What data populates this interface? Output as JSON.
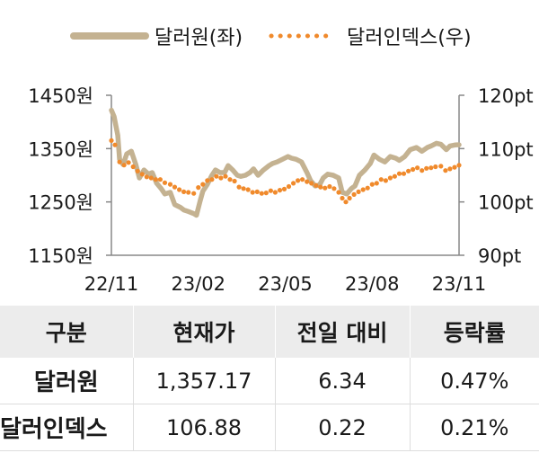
{
  "chart_data": {
    "type": "line",
    "legend": [
      {
        "name": "달러원(좌)",
        "color": "#c4b291",
        "style": "solid"
      },
      {
        "name": "달러인덱스(우)",
        "color": "#f08a2c",
        "style": "dotted"
      }
    ],
    "legend_position": "top-center",
    "x_tick_labels": [
      "22/11",
      "23/02",
      "23/05",
      "23/08",
      "23/11"
    ],
    "x_range": [
      "2022-11-01",
      "2023-11-20"
    ],
    "y_left": {
      "ticks": [
        "1450원",
        "1350원",
        "1250원",
        "1150원"
      ],
      "min": 1150,
      "max": 1450
    },
    "y_right": {
      "ticks": [
        "120pt",
        "110pt",
        "100pt",
        "90pt"
      ],
      "min": 90,
      "max": 120
    },
    "series": [
      {
        "name": "달러원(좌)",
        "axis": "left",
        "points": [
          [
            "2022-11-01",
            1422
          ],
          [
            "2022-11-04",
            1410
          ],
          [
            "2022-11-08",
            1375
          ],
          [
            "2022-11-10",
            1330
          ],
          [
            "2022-11-14",
            1320
          ],
          [
            "2022-11-18",
            1340
          ],
          [
            "2022-11-23",
            1345
          ],
          [
            "2022-11-28",
            1320
          ],
          [
            "2022-12-02",
            1295
          ],
          [
            "2022-12-07",
            1310
          ],
          [
            "2022-12-12",
            1302
          ],
          [
            "2022-12-16",
            1305
          ],
          [
            "2022-12-21",
            1285
          ],
          [
            "2022-12-26",
            1275
          ],
          [
            "2022-12-30",
            1265
          ],
          [
            "2023-01-05",
            1268
          ],
          [
            "2023-01-10",
            1245
          ],
          [
            "2023-01-16",
            1240
          ],
          [
            "2023-01-20",
            1235
          ],
          [
            "2023-01-25",
            1232
          ],
          [
            "2023-01-31",
            1228
          ],
          [
            "2023-02-03",
            1225
          ],
          [
            "2023-02-07",
            1252
          ],
          [
            "2023-02-10",
            1270
          ],
          [
            "2023-02-15",
            1283
          ],
          [
            "2023-02-20",
            1300
          ],
          [
            "2023-02-24",
            1310
          ],
          [
            "2023-03-01",
            1305
          ],
          [
            "2023-03-06",
            1305
          ],
          [
            "2023-03-10",
            1318
          ],
          [
            "2023-03-15",
            1310
          ],
          [
            "2023-03-20",
            1300
          ],
          [
            "2023-03-24",
            1298
          ],
          [
            "2023-03-29",
            1300
          ],
          [
            "2023-04-03",
            1305
          ],
          [
            "2023-04-07",
            1312
          ],
          [
            "2023-04-12",
            1300
          ],
          [
            "2023-04-18",
            1310
          ],
          [
            "2023-04-24",
            1318
          ],
          [
            "2023-04-28",
            1322
          ],
          [
            "2023-05-03",
            1325
          ],
          [
            "2023-05-09",
            1330
          ],
          [
            "2023-05-15",
            1335
          ],
          [
            "2023-05-19",
            1332
          ],
          [
            "2023-05-24",
            1330
          ],
          [
            "2023-05-30",
            1325
          ],
          [
            "2023-06-05",
            1305
          ],
          [
            "2023-06-09",
            1290
          ],
          [
            "2023-06-14",
            1280
          ],
          [
            "2023-06-19",
            1282
          ],
          [
            "2023-06-23",
            1295
          ],
          [
            "2023-06-28",
            1302
          ],
          [
            "2023-07-04",
            1300
          ],
          [
            "2023-07-10",
            1295
          ],
          [
            "2023-07-14",
            1268
          ],
          [
            "2023-07-19",
            1265
          ],
          [
            "2023-07-24",
            1275
          ],
          [
            "2023-07-28",
            1280
          ],
          [
            "2023-08-02",
            1300
          ],
          [
            "2023-08-08",
            1310
          ],
          [
            "2023-08-14",
            1322
          ],
          [
            "2023-08-18",
            1338
          ],
          [
            "2023-08-24",
            1330
          ],
          [
            "2023-08-30",
            1325
          ],
          [
            "2023-09-05",
            1335
          ],
          [
            "2023-09-11",
            1332
          ],
          [
            "2023-09-15",
            1328
          ],
          [
            "2023-09-21",
            1335
          ],
          [
            "2023-09-27",
            1348
          ],
          [
            "2023-10-04",
            1352
          ],
          [
            "2023-10-10",
            1345
          ],
          [
            "2023-10-16",
            1352
          ],
          [
            "2023-10-20",
            1355
          ],
          [
            "2023-10-26",
            1360
          ],
          [
            "2023-10-31",
            1358
          ],
          [
            "2023-11-06",
            1348
          ],
          [
            "2023-11-10",
            1355
          ],
          [
            "2023-11-16",
            1357
          ],
          [
            "2023-11-20",
            1357.17
          ]
        ]
      },
      {
        "name": "달러인덱스(우)",
        "axis": "right",
        "points": [
          [
            "2022-11-01",
            111.5
          ],
          [
            "2022-11-05",
            110.7
          ],
          [
            "2022-11-10",
            107.5
          ],
          [
            "2022-11-15",
            106.9
          ],
          [
            "2022-11-20",
            107.4
          ],
          [
            "2022-11-25",
            106.6
          ],
          [
            "2022-11-30",
            105.8
          ],
          [
            "2022-12-05",
            105.2
          ],
          [
            "2022-12-10",
            104.7
          ],
          [
            "2022-12-15",
            104.5
          ],
          [
            "2022-12-20",
            104.2
          ],
          [
            "2022-12-25",
            104.2
          ],
          [
            "2022-12-30",
            103.6
          ],
          [
            "2023-01-05",
            103.3
          ],
          [
            "2023-01-10",
            102.8
          ],
          [
            "2023-01-15",
            102.3
          ],
          [
            "2023-01-20",
            101.9
          ],
          [
            "2023-01-25",
            101.8
          ],
          [
            "2023-01-31",
            101.6
          ],
          [
            "2023-02-05",
            102.7
          ],
          [
            "2023-02-10",
            103.3
          ],
          [
            "2023-02-15",
            104.0
          ],
          [
            "2023-02-20",
            104.2
          ],
          [
            "2023-02-25",
            104.8
          ],
          [
            "2023-03-02",
            104.5
          ],
          [
            "2023-03-07",
            104.8
          ],
          [
            "2023-03-12",
            104.2
          ],
          [
            "2023-03-17",
            103.9
          ],
          [
            "2023-03-22",
            102.8
          ],
          [
            "2023-03-27",
            102.5
          ],
          [
            "2023-04-01",
            102.3
          ],
          [
            "2023-04-06",
            101.8
          ],
          [
            "2023-04-11",
            101.9
          ],
          [
            "2023-04-16",
            101.6
          ],
          [
            "2023-04-21",
            101.7
          ],
          [
            "2023-04-26",
            102.1
          ],
          [
            "2023-05-01",
            101.8
          ],
          [
            "2023-05-06",
            102.2
          ],
          [
            "2023-05-11",
            102.4
          ],
          [
            "2023-05-16",
            102.9
          ],
          [
            "2023-05-21",
            103.5
          ],
          [
            "2023-05-26",
            104.0
          ],
          [
            "2023-05-31",
            104.2
          ],
          [
            "2023-06-05",
            103.8
          ],
          [
            "2023-06-10",
            103.5
          ],
          [
            "2023-06-15",
            103.1
          ],
          [
            "2023-06-20",
            102.8
          ],
          [
            "2023-06-25",
            102.6
          ],
          [
            "2023-06-30",
            102.9
          ],
          [
            "2023-07-05",
            102.5
          ],
          [
            "2023-07-10",
            101.8
          ],
          [
            "2023-07-14",
            100.7
          ],
          [
            "2023-07-18",
            100.0
          ],
          [
            "2023-07-22",
            100.7
          ],
          [
            "2023-07-27",
            101.4
          ],
          [
            "2023-08-01",
            101.9
          ],
          [
            "2023-08-06",
            102.3
          ],
          [
            "2023-08-11",
            102.6
          ],
          [
            "2023-08-16",
            103.3
          ],
          [
            "2023-08-21",
            103.5
          ],
          [
            "2023-08-26",
            104.2
          ],
          [
            "2023-08-31",
            104.0
          ],
          [
            "2023-09-05",
            104.5
          ],
          [
            "2023-09-10",
            104.8
          ],
          [
            "2023-09-15",
            105.3
          ],
          [
            "2023-09-20",
            105.3
          ],
          [
            "2023-09-25",
            105.8
          ],
          [
            "2023-09-30",
            106.1
          ],
          [
            "2023-10-05",
            106.4
          ],
          [
            "2023-10-10",
            105.9
          ],
          [
            "2023-10-15",
            106.3
          ],
          [
            "2023-10-20",
            106.4
          ],
          [
            "2023-10-25",
            106.6
          ],
          [
            "2023-10-31",
            106.7
          ],
          [
            "2023-11-05",
            105.9
          ],
          [
            "2023-11-10",
            106.2
          ],
          [
            "2023-11-15",
            106.5
          ],
          [
            "2023-11-20",
            106.88
          ]
        ]
      }
    ]
  },
  "table": {
    "headers": [
      "구분",
      "현재가",
      "전일 대비",
      "등락률"
    ],
    "rows": [
      {
        "name": "달러원",
        "price": "1,357.17",
        "change": "6.34",
        "rate": "0.47%"
      },
      {
        "name": "달러인덱스",
        "price": "106.88",
        "change": "0.22",
        "rate": "0.21%"
      }
    ]
  }
}
